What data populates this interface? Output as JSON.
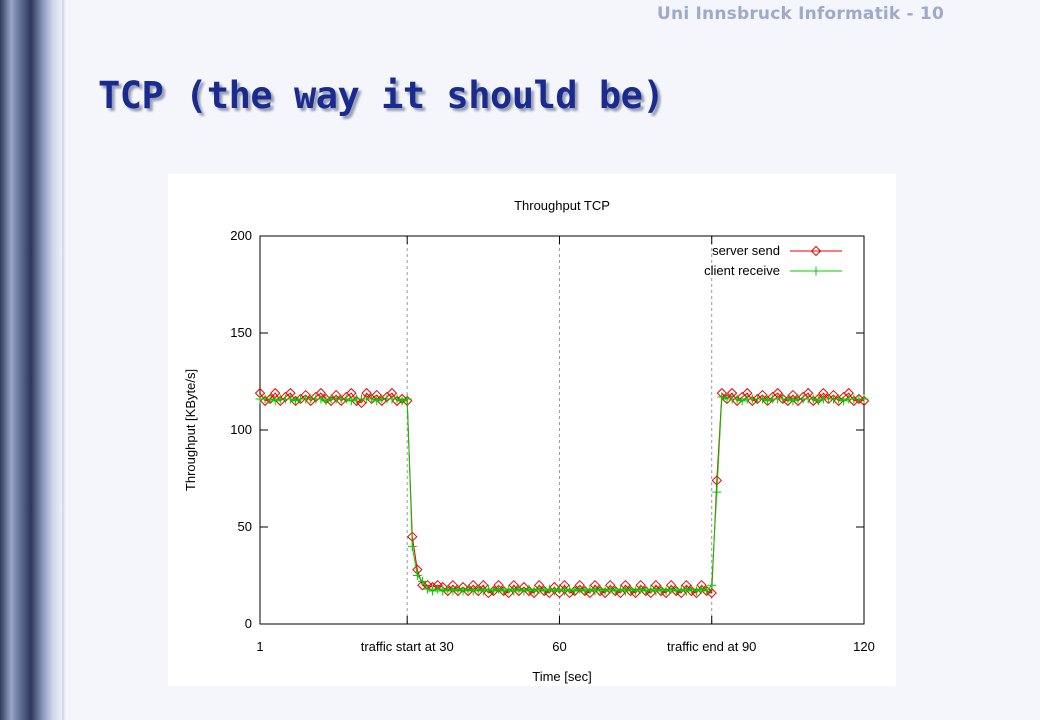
{
  "slide": {
    "header": "Uni Innsbruck Informatik - 10",
    "title": "TCP (the way it should be)"
  },
  "chart_data": {
    "type": "line",
    "title": "Throughput TCP",
    "xlabel": "Time [sec]",
    "ylabel": "Throughput [KByte/s]",
    "xlim": [
      1,
      120
    ],
    "ylim": [
      0,
      200
    ],
    "x_ticks": [
      {
        "value": 1,
        "label": "1"
      },
      {
        "value": 30,
        "label": "traffic start at 30"
      },
      {
        "value": 60,
        "label": "60"
      },
      {
        "value": 90,
        "label": "traffic end at 90"
      },
      {
        "value": 120,
        "label": "120"
      }
    ],
    "y_ticks": [
      0,
      50,
      100,
      150,
      200
    ],
    "vertical_grid": [
      30,
      60,
      90
    ],
    "legend_position": "top-right",
    "series": [
      {
        "name": "server send",
        "color": "#ee0000",
        "marker": "diamond",
        "x": [
          1,
          2,
          3,
          4,
          5,
          6,
          7,
          8,
          9,
          10,
          11,
          12,
          13,
          14,
          15,
          16,
          17,
          18,
          19,
          20,
          21,
          22,
          23,
          24,
          25,
          26,
          27,
          28,
          29,
          30,
          31,
          32,
          33,
          34,
          35,
          36,
          37,
          38,
          39,
          40,
          41,
          42,
          43,
          44,
          45,
          46,
          47,
          48,
          49,
          50,
          51,
          52,
          53,
          54,
          55,
          56,
          57,
          58,
          59,
          60,
          61,
          62,
          63,
          64,
          65,
          66,
          67,
          68,
          69,
          70,
          71,
          72,
          73,
          74,
          75,
          76,
          77,
          78,
          79,
          80,
          81,
          82,
          83,
          84,
          85,
          86,
          87,
          88,
          89,
          90,
          91,
          92,
          93,
          94,
          95,
          96,
          97,
          98,
          99,
          100,
          101,
          102,
          103,
          104,
          105,
          106,
          107,
          108,
          109,
          110,
          111,
          112,
          113,
          114,
          115,
          116,
          117,
          118,
          119,
          120
        ],
        "y": [
          119,
          115,
          116,
          119,
          115,
          117,
          119,
          115,
          116,
          118,
          115,
          117,
          119,
          116,
          115,
          118,
          115,
          117,
          119,
          115,
          114,
          119,
          116,
          118,
          115,
          117,
          119,
          115,
          116,
          115,
          45,
          28,
          20,
          20,
          19,
          20,
          19,
          17,
          20,
          17,
          19,
          17,
          20,
          17,
          20,
          16,
          17,
          20,
          17,
          16,
          20,
          17,
          19,
          17,
          16,
          20,
          17,
          16,
          19,
          16,
          20,
          16,
          17,
          20,
          17,
          16,
          20,
          17,
          16,
          20,
          17,
          16,
          20,
          17,
          16,
          20,
          17,
          16,
          20,
          17,
          16,
          20,
          17,
          16,
          20,
          17,
          16,
          20,
          17,
          16,
          74,
          119,
          116,
          119,
          115,
          117,
          119,
          115,
          116,
          118,
          115,
          117,
          119,
          116,
          115,
          118,
          115,
          117,
          119,
          115,
          116,
          119,
          116,
          118,
          115,
          117,
          119,
          115,
          116,
          115
        ]
      },
      {
        "name": "client receive",
        "color": "#00cc00",
        "marker": "plus",
        "x": [
          1,
          2,
          3,
          4,
          5,
          6,
          7,
          8,
          9,
          10,
          11,
          12,
          13,
          14,
          15,
          16,
          17,
          18,
          19,
          20,
          21,
          22,
          23,
          24,
          25,
          26,
          27,
          28,
          29,
          30,
          31,
          32,
          33,
          34,
          35,
          36,
          37,
          38,
          39,
          40,
          41,
          42,
          43,
          44,
          45,
          46,
          47,
          48,
          49,
          50,
          51,
          52,
          53,
          54,
          55,
          56,
          57,
          58,
          59,
          60,
          61,
          62,
          63,
          64,
          65,
          66,
          67,
          68,
          69,
          70,
          71,
          72,
          73,
          74,
          75,
          76,
          77,
          78,
          79,
          80,
          81,
          82,
          83,
          84,
          85,
          86,
          87,
          88,
          89,
          90,
          91,
          92,
          93,
          94,
          95,
          96,
          97,
          98,
          99,
          100,
          101,
          102,
          103,
          104,
          105,
          106,
          107,
          108,
          109,
          110,
          111,
          112,
          113,
          114,
          115,
          116,
          117,
          118,
          119,
          120
        ],
        "y": [
          116,
          116,
          116,
          115,
          116,
          116,
          116,
          115,
          116,
          116,
          116,
          116,
          116,
          115,
          116,
          116,
          116,
          116,
          115,
          116,
          116,
          116,
          116,
          115,
          116,
          116,
          116,
          116,
          115,
          116,
          40,
          25,
          22,
          18,
          17,
          18,
          17,
          18,
          17,
          18,
          17,
          18,
          17,
          18,
          17,
          18,
          17,
          18,
          17,
          18,
          17,
          18,
          17,
          18,
          17,
          18,
          17,
          18,
          17,
          18,
          17,
          18,
          17,
          18,
          17,
          18,
          17,
          18,
          17,
          18,
          17,
          18,
          17,
          18,
          17,
          18,
          17,
          18,
          17,
          18,
          17,
          18,
          17,
          18,
          17,
          18,
          17,
          18,
          17,
          20,
          68,
          117,
          116,
          116,
          116,
          115,
          116,
          116,
          116,
          116,
          115,
          116,
          116,
          116,
          116,
          115,
          116,
          116,
          116,
          116,
          115,
          116,
          116,
          116,
          116,
          115,
          116,
          116,
          116,
          116
        ]
      }
    ]
  }
}
